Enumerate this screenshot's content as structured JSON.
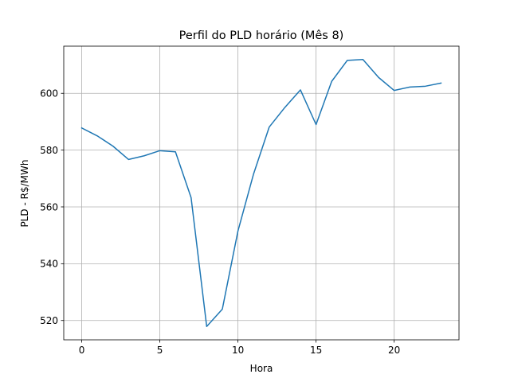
{
  "chart_data": {
    "type": "line",
    "title": "Perfil do PLD horário (Mês 8)",
    "xlabel": "Hora",
    "ylabel": "PLD - R$/MWh",
    "xlim": [
      -1.15,
      24.15
    ],
    "ylim": [
      513.2,
      616.6
    ],
    "xticks": [
      0,
      5,
      10,
      15,
      20
    ],
    "yticks": [
      520,
      540,
      560,
      580,
      600
    ],
    "grid": true,
    "series": [
      {
        "color": "#1f77b4",
        "x": [
          0,
          1,
          2,
          3,
          4,
          5,
          6,
          7,
          8,
          9,
          10,
          11,
          12,
          13,
          14,
          15,
          16,
          17,
          18,
          19,
          20,
          21,
          22,
          23
        ],
        "y": [
          587.8,
          585.0,
          581.4,
          576.7,
          578.0,
          579.8,
          579.4,
          563.3,
          517.9,
          524.0,
          551.5,
          571.6,
          588.1,
          595.0,
          601.2,
          589.0,
          604.2,
          611.6,
          611.9,
          605.6,
          601.0,
          602.2,
          602.5,
          603.6
        ]
      }
    ]
  }
}
